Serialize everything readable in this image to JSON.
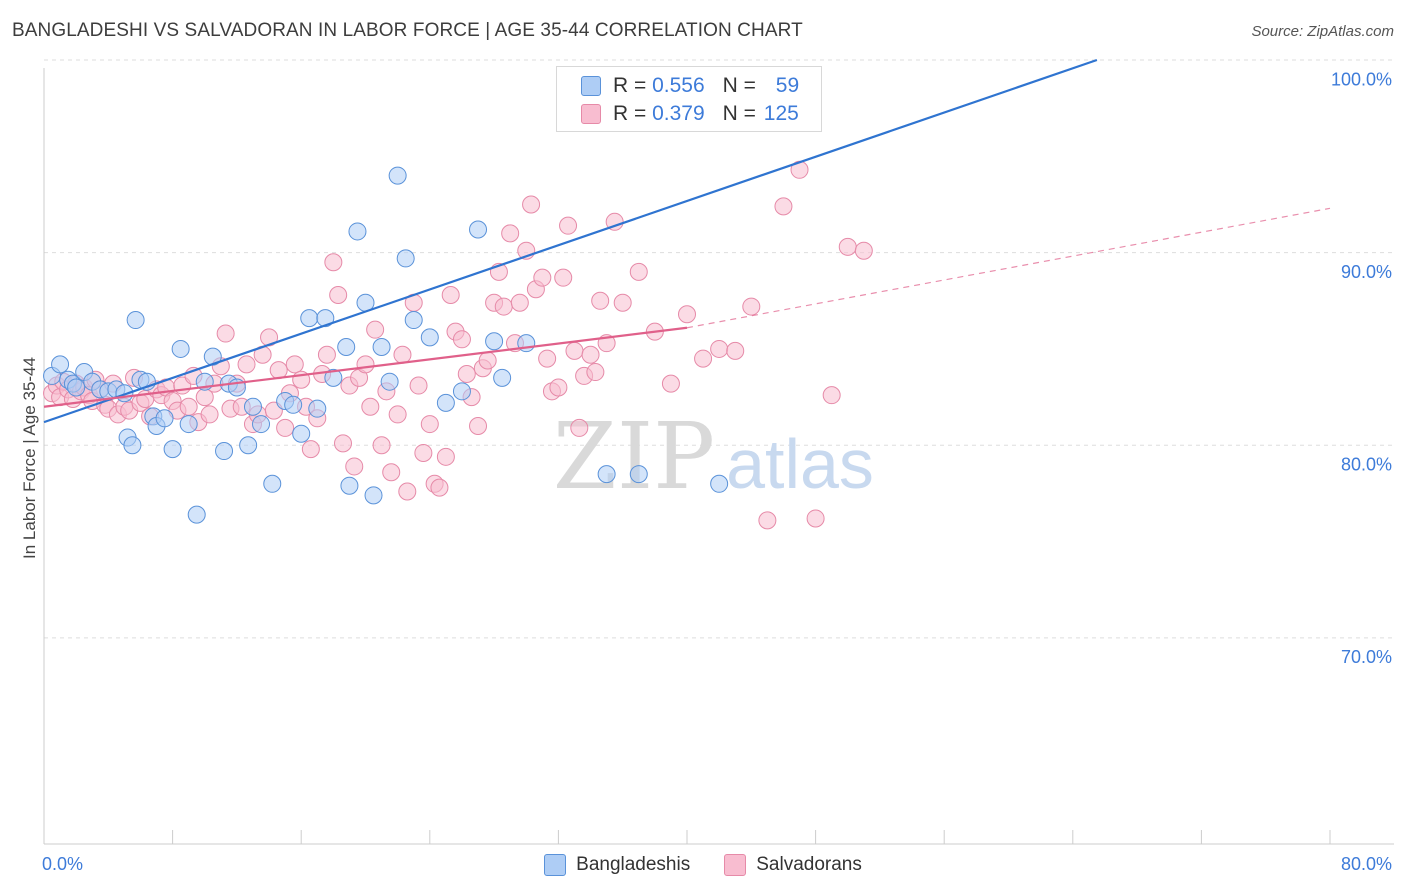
{
  "header": {
    "title": "BANGLADESHI VS SALVADORAN IN LABOR FORCE | AGE 35-44 CORRELATION CHART",
    "source": "Source: ZipAtlas.com"
  },
  "watermark": {
    "zip": "ZIP",
    "atlas": "atlas"
  },
  "legend_top": [
    {
      "r_label": "R = ",
      "r_value": "0.556",
      "n_label": "N = ",
      "n_value": "59"
    },
    {
      "r_label": "R = ",
      "r_value": "0.379",
      "n_label": "N = ",
      "n_value": "125"
    }
  ],
  "colors": {
    "bangladeshi_fill": "#aecdf5",
    "bangladeshi_stroke": "#5a92d9",
    "bangladeshi_line": "#2f74d0",
    "salvadoran_fill": "#f8bdd0",
    "salvadoran_stroke": "#e68aa8",
    "salvadoran_line": "#e0608a",
    "axis_value": "#3d7bd9",
    "grid": "#dddddd"
  },
  "chart_data": {
    "type": "scatter",
    "title": "BANGLADESHI VS SALVADORAN IN LABOR FORCE | AGE 35-44 CORRELATION CHART",
    "xlabel": "",
    "ylabel": "In Labor Force | Age 35-44",
    "xlim": [
      0,
      80
    ],
    "ylim": [
      60.3,
      101
    ],
    "x_tick_labels": [
      {
        "value": 0,
        "label": "0.0%"
      },
      {
        "value": 80,
        "label": "80.0%"
      }
    ],
    "x_minor_ticks": [
      0,
      8,
      16,
      24,
      32,
      40,
      48,
      56,
      64,
      72,
      80
    ],
    "y_tick_labels": [
      {
        "value": 100,
        "label": "100.0%"
      },
      {
        "value": 90,
        "label": "90.0%"
      },
      {
        "value": 80,
        "label": "80.0%"
      },
      {
        "value": 70,
        "label": "70.0%"
      }
    ],
    "y_gridlines": [
      101,
      91,
      81,
      71
    ],
    "grid": true,
    "legend_position": "top-center",
    "series": [
      {
        "name": "Bangladeshis",
        "r": 0.556,
        "n": 59,
        "trend": {
          "x0": 0,
          "y0": 82.2,
          "x1": 65.5,
          "y1": 101
        },
        "points": [
          [
            0.5,
            84.6
          ],
          [
            1,
            85.2
          ],
          [
            1.5,
            84.4
          ],
          [
            1.8,
            84.2
          ],
          [
            2,
            84.0
          ],
          [
            2.5,
            84.8
          ],
          [
            3,
            84.3
          ],
          [
            3.5,
            83.9
          ],
          [
            4,
            83.8
          ],
          [
            4.5,
            83.9
          ],
          [
            5,
            83.7
          ],
          [
            5.2,
            81.4
          ],
          [
            5.5,
            81.0
          ],
          [
            5.7,
            87.5
          ],
          [
            6,
            84.4
          ],
          [
            6.4,
            84.3
          ],
          [
            6.8,
            82.5
          ],
          [
            7,
            82.0
          ],
          [
            7.5,
            82.4
          ],
          [
            8,
            80.8
          ],
          [
            8.5,
            86.0
          ],
          [
            9,
            82.1
          ],
          [
            9.5,
            77.4
          ],
          [
            10,
            84.3
          ],
          [
            10.5,
            85.6
          ],
          [
            11.2,
            80.7
          ],
          [
            11.5,
            84.2
          ],
          [
            12,
            84.0
          ],
          [
            12.7,
            81.0
          ],
          [
            13,
            83.0
          ],
          [
            13.5,
            82.1
          ],
          [
            14.2,
            79.0
          ],
          [
            15,
            83.3
          ],
          [
            15.5,
            83.1
          ],
          [
            16,
            81.6
          ],
          [
            16.5,
            87.6
          ],
          [
            17,
            82.9
          ],
          [
            17.5,
            87.6
          ],
          [
            18,
            84.5
          ],
          [
            18.8,
            86.1
          ],
          [
            19,
            78.9
          ],
          [
            19.5,
            92.1
          ],
          [
            20,
            88.4
          ],
          [
            20.5,
            78.4
          ],
          [
            21,
            86.1
          ],
          [
            21.5,
            84.3
          ],
          [
            22,
            95.0
          ],
          [
            22.5,
            90.7
          ],
          [
            23,
            87.5
          ],
          [
            24,
            86.6
          ],
          [
            25,
            83.2
          ],
          [
            26,
            83.8
          ],
          [
            27,
            92.2
          ],
          [
            28,
            86.4
          ],
          [
            28.5,
            84.5
          ],
          [
            30,
            86.3
          ],
          [
            35,
            79.5
          ],
          [
            37,
            79.5
          ],
          [
            42,
            79.0
          ]
        ]
      },
      {
        "name": "Salvadorans",
        "r": 0.379,
        "n": 125,
        "trend": {
          "x0": 0,
          "y0": 83.0,
          "x1": 40,
          "y1": 87.1,
          "dashed_x1": 80,
          "dashed_y1": 93.3
        },
        "points": [
          [
            0.5,
            83.7
          ],
          [
            0.8,
            84.1
          ],
          [
            1,
            83.5
          ],
          [
            1.2,
            84.3
          ],
          [
            1.5,
            83.9
          ],
          [
            1.8,
            83.4
          ],
          [
            2,
            84.2
          ],
          [
            2.3,
            83.8
          ],
          [
            2.5,
            84.0
          ],
          [
            2.8,
            83.6
          ],
          [
            3,
            83.3
          ],
          [
            3.2,
            84.4
          ],
          [
            3.5,
            83.9
          ],
          [
            3.8,
            83.1
          ],
          [
            4,
            82.9
          ],
          [
            4.3,
            84.2
          ],
          [
            4.6,
            82.6
          ],
          [
            5,
            83.0
          ],
          [
            5.3,
            82.8
          ],
          [
            5.6,
            84.5
          ],
          [
            6,
            83.2
          ],
          [
            6.3,
            83.4
          ],
          [
            6.6,
            82.5
          ],
          [
            7,
            83.9
          ],
          [
            7.3,
            83.6
          ],
          [
            7.6,
            84.0
          ],
          [
            8,
            83.3
          ],
          [
            8.3,
            82.8
          ],
          [
            8.6,
            84.1
          ],
          [
            9,
            83.0
          ],
          [
            9.3,
            84.6
          ],
          [
            9.6,
            82.2
          ],
          [
            10,
            83.5
          ],
          [
            10.3,
            82.6
          ],
          [
            10.6,
            84.2
          ],
          [
            11,
            85.1
          ],
          [
            11.3,
            86.8
          ],
          [
            11.6,
            82.9
          ],
          [
            12,
            84.2
          ],
          [
            12.3,
            83.0
          ],
          [
            12.6,
            85.2
          ],
          [
            13,
            82.1
          ],
          [
            13.3,
            82.6
          ],
          [
            13.6,
            85.7
          ],
          [
            14,
            86.6
          ],
          [
            14.3,
            82.8
          ],
          [
            14.6,
            84.9
          ],
          [
            15,
            81.9
          ],
          [
            15.3,
            83.7
          ],
          [
            15.6,
            85.2
          ],
          [
            16,
            84.4
          ],
          [
            16.3,
            83.0
          ],
          [
            16.6,
            80.8
          ],
          [
            17,
            82.4
          ],
          [
            17.3,
            84.7
          ],
          [
            17.6,
            85.7
          ],
          [
            18,
            90.5
          ],
          [
            18.3,
            88.8
          ],
          [
            18.6,
            81.1
          ],
          [
            19,
            84.1
          ],
          [
            19.3,
            79.9
          ],
          [
            19.6,
            84.5
          ],
          [
            20,
            85.2
          ],
          [
            20.3,
            83.0
          ],
          [
            20.6,
            87.0
          ],
          [
            21,
            81.0
          ],
          [
            21.3,
            83.8
          ],
          [
            21.6,
            79.6
          ],
          [
            22,
            82.6
          ],
          [
            22.3,
            85.7
          ],
          [
            22.6,
            78.6
          ],
          [
            23,
            88.4
          ],
          [
            23.3,
            84.1
          ],
          [
            23.6,
            80.6
          ],
          [
            24,
            82.1
          ],
          [
            24.3,
            79.0
          ],
          [
            24.6,
            78.8
          ],
          [
            25,
            80.4
          ],
          [
            25.3,
            88.8
          ],
          [
            25.6,
            86.9
          ],
          [
            26,
            86.5
          ],
          [
            26.3,
            84.7
          ],
          [
            26.6,
            83.5
          ],
          [
            27,
            82.0
          ],
          [
            27.3,
            85.0
          ],
          [
            27.6,
            85.4
          ],
          [
            28,
            88.4
          ],
          [
            28.3,
            90.0
          ],
          [
            28.6,
            88.2
          ],
          [
            29,
            92.0
          ],
          [
            29.3,
            86.3
          ],
          [
            29.6,
            88.4
          ],
          [
            30,
            91.1
          ],
          [
            30.3,
            93.5
          ],
          [
            30.6,
            89.1
          ],
          [
            31,
            89.7
          ],
          [
            31.3,
            85.5
          ],
          [
            31.6,
            83.8
          ],
          [
            32,
            84.0
          ],
          [
            32.3,
            89.7
          ],
          [
            32.6,
            92.4
          ],
          [
            33,
            85.9
          ],
          [
            33.3,
            81.9
          ],
          [
            33.6,
            84.6
          ],
          [
            34,
            85.7
          ],
          [
            34.3,
            84.8
          ],
          [
            34.6,
            88.5
          ],
          [
            35,
            86.3
          ],
          [
            35.5,
            92.6
          ],
          [
            36,
            88.4
          ],
          [
            37,
            90.0
          ],
          [
            38,
            86.9
          ],
          [
            39,
            84.2
          ],
          [
            40,
            87.8
          ],
          [
            41,
            85.5
          ],
          [
            42,
            86.0
          ],
          [
            43,
            85.9
          ],
          [
            44,
            88.2
          ],
          [
            45,
            77.1
          ],
          [
            46,
            93.4
          ],
          [
            47,
            95.3
          ],
          [
            48,
            77.2
          ],
          [
            49,
            83.6
          ],
          [
            50,
            91.3
          ],
          [
            51,
            91.1
          ]
        ]
      }
    ]
  },
  "legend_bottom": [
    {
      "label": "Bangladeshis"
    },
    {
      "label": "Salvadorans"
    }
  ]
}
